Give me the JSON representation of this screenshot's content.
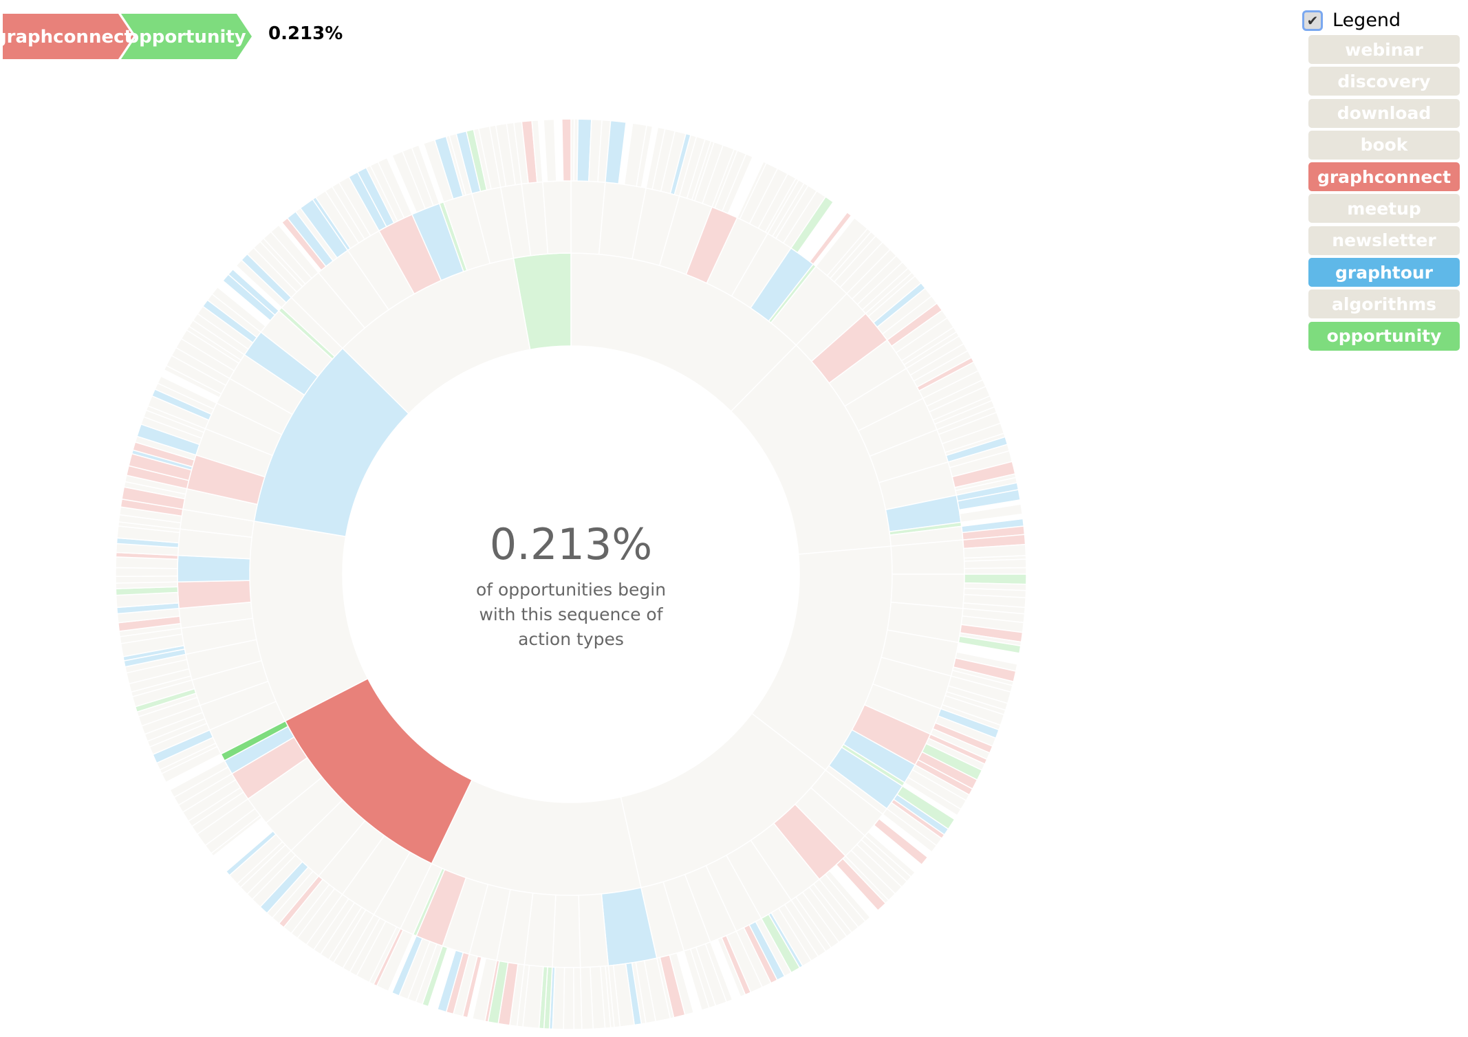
{
  "breadcrumb": {
    "steps": [
      {
        "label": "graphconnect",
        "color": "#e8817a"
      },
      {
        "label": "opportunity",
        "color": "#7edc7e"
      }
    ],
    "percentage": "0.213%"
  },
  "explanation": {
    "percentage": "0.213%",
    "line1": "of opportunities begin",
    "line2": "with this sequence of",
    "line3": "action types"
  },
  "legend": {
    "toggle_label": "Legend",
    "checked": true,
    "items": [
      {
        "label": "webinar",
        "color": "#e8e5dc"
      },
      {
        "label": "discovery",
        "color": "#e8e5dc"
      },
      {
        "label": "download",
        "color": "#e8e5dc"
      },
      {
        "label": "book",
        "color": "#e8e5dc"
      },
      {
        "label": "graphconnect",
        "color": "#e8817a"
      },
      {
        "label": "meetup",
        "color": "#e8e5dc"
      },
      {
        "label": "newsletter",
        "color": "#e8e5dc"
      },
      {
        "label": "graphtour",
        "color": "#5fb8e8"
      },
      {
        "label": "algorithms",
        "color": "#e8e5dc"
      },
      {
        "label": "opportunity",
        "color": "#7edc7e"
      }
    ]
  },
  "chart_data": {
    "type": "sunburst",
    "title": "",
    "highlighted_path": [
      "graphconnect",
      "opportunity"
    ],
    "highlighted_value_pct": 0.213,
    "faded_opacity": 0.3,
    "outer_ring_seed": 7,
    "root": [
      {
        "name": "webinar",
        "value": 44.5,
        "children": [
          [
            "discovery",
            5
          ],
          [
            "webinar",
            6
          ],
          [
            "download",
            5
          ],
          [
            "book",
            5
          ],
          [
            "graphconnect",
            4
          ],
          [
            "meetup",
            5
          ],
          [
            "newsletter",
            4
          ],
          [
            "graphtour",
            4
          ],
          [
            "opportunity",
            0.5
          ],
          [
            "webinar",
            6
          ]
        ]
      },
      {
        "name": "discovery",
        "value": 40.5,
        "children": [
          [
            "webinar",
            4
          ],
          [
            "graphconnect",
            5
          ],
          [
            "download",
            5
          ],
          [
            "book",
            5
          ],
          [
            "meetup",
            5
          ],
          [
            "newsletter",
            5
          ],
          [
            "webinar",
            5
          ],
          [
            "graphtour",
            4
          ],
          [
            "opportunity",
            0.6
          ],
          [
            "book",
            2
          ]
        ]
      },
      {
        "name": "download",
        "value": 42.6,
        "children": [
          [
            "webinar",
            5
          ],
          [
            "discovery",
            5
          ],
          [
            "book",
            5
          ],
          [
            "meetup",
            5
          ],
          [
            "newsletter",
            5
          ],
          [
            "algorithms",
            4
          ],
          [
            "graphconnect",
            5
          ],
          [
            "graphtour",
            3
          ],
          [
            "opportunity",
            0.6
          ],
          [
            "graphtour",
            4
          ],
          [
            "book",
            1
          ]
        ]
      },
      {
        "name": "book",
        "value": 39.8,
        "children": [
          [
            "webinar",
            4
          ],
          [
            "discovery",
            4
          ],
          [
            "graphconnect",
            5
          ],
          [
            "download",
            5
          ],
          [
            "meetup",
            5
          ],
          [
            "newsletter",
            4
          ],
          [
            "book",
            4
          ],
          [
            "webinar",
            4
          ],
          [
            "algorithms",
            4
          ]
        ]
      },
      {
        "name": "meetup",
        "value": 38.3,
        "children": [
          [
            "graphtour",
            7
          ],
          [
            "webinar",
            4
          ],
          [
            "discovery",
            4
          ],
          [
            "download",
            4
          ],
          [
            "book",
            4
          ],
          [
            "meetup",
            4
          ],
          [
            "newsletter",
            4
          ],
          [
            "graphconnect",
            4
          ],
          [
            "opportunity",
            0.5
          ],
          [
            "webinar",
            2
          ]
        ]
      },
      {
        "name": "graphconnect",
        "value": 37.1,
        "children": [
          [
            "webinar",
            4
          ],
          [
            "discovery",
            5
          ],
          [
            "download",
            4
          ],
          [
            "book",
            5
          ],
          [
            "meetup",
            5
          ],
          [
            "newsletter",
            4
          ],
          [
            "graphconnect",
            4
          ],
          [
            "graphtour",
            2
          ],
          [
            "opportunity",
            1
          ]
        ]
      },
      {
        "name": "newsletter",
        "value": 36.7,
        "children": [
          [
            "webinar",
            4
          ],
          [
            "discovery",
            4
          ],
          [
            "download",
            4
          ],
          [
            "book",
            4
          ],
          [
            "meetup",
            4
          ],
          [
            "newsletter",
            3
          ],
          [
            "graphconnect",
            4
          ],
          [
            "graphtour",
            4
          ],
          [
            "webinar",
            4
          ],
          [
            "algorithms",
            3
          ]
        ]
      },
      {
        "name": "graphtour",
        "value": 35.2,
        "children": [
          [
            "webinar",
            3
          ],
          [
            "graphconnect",
            5
          ],
          [
            "discovery",
            4
          ],
          [
            "download",
            4
          ],
          [
            "book",
            4
          ],
          [
            "meetup",
            4
          ],
          [
            "graphtour",
            4
          ],
          [
            "webinar",
            4
          ],
          [
            "opportunity",
            0.6
          ],
          [
            "book",
            2
          ]
        ]
      },
      {
        "name": "algorithms",
        "value": 35.0,
        "children": [
          [
            "webinar",
            5
          ],
          [
            "discovery",
            5
          ],
          [
            "download",
            5
          ],
          [
            "graphconnect",
            5
          ],
          [
            "graphtour",
            4
          ],
          [
            "opportunity",
            0.6
          ],
          [
            "book",
            4
          ],
          [
            "meetup",
            4
          ]
        ]
      },
      {
        "name": "opportunity",
        "value": 10.3,
        "children": [
          [
            "webinar",
            3
          ],
          [
            "discovery",
            3
          ],
          [
            "download",
            4
          ]
        ]
      }
    ]
  }
}
